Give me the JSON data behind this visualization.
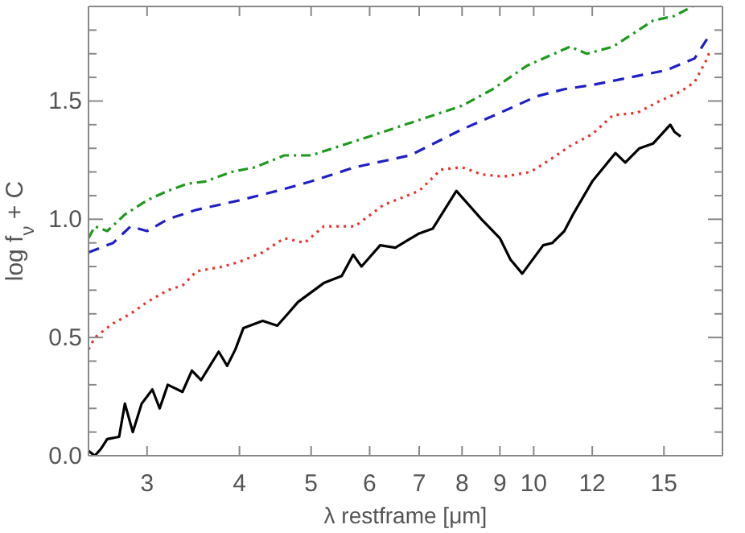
{
  "chart_data": {
    "type": "line",
    "xlabel": "λ restframe [μm]",
    "ylabel": "log f$_{ν}$ + C",
    "log": "x",
    "marker": "none",
    "xlim": [
      2.5,
      18
    ],
    "xticks": [
      3,
      4,
      5,
      6,
      7,
      8,
      9,
      10,
      12,
      15
    ],
    "ylim": [
      0,
      1.9
    ],
    "yticks": [
      {
        "value": 0,
        "label": "0.0"
      },
      {
        "value": 0.1,
        "label": null
      },
      {
        "value": 0.2,
        "label": null
      },
      {
        "value": 0.3,
        "label": null
      },
      {
        "value": 0.4,
        "label": null
      },
      {
        "value": 0.5,
        "label": "0.5"
      },
      {
        "value": 0.6,
        "label": null
      },
      {
        "value": 0.7,
        "label": null
      },
      {
        "value": 0.8,
        "label": null
      },
      {
        "value": 0.9,
        "label": null
      },
      {
        "value": 1,
        "label": "1.0"
      },
      {
        "value": 1.1,
        "label": null
      },
      {
        "value": 1.2,
        "label": null
      },
      {
        "value": 1.3,
        "label": null
      },
      {
        "value": 1.4,
        "label": null
      },
      {
        "value": 1.5,
        "label": "1.5"
      },
      {
        "value": 1.6,
        "label": null
      },
      {
        "value": 1.7,
        "label": null
      },
      {
        "value": 1.8,
        "label": null
      }
    ],
    "series": [
      {
        "color": "#000000",
        "line_style": "solid",
        "x": [
          2.5,
          2.55,
          2.6,
          2.65,
          2.75,
          2.8,
          2.87,
          2.95,
          3.05,
          3.12,
          3.2,
          3.35,
          3.45,
          3.55,
          3.75,
          3.85,
          3.95,
          4.05,
          4.3,
          4.5,
          4.65,
          4.8,
          5.2,
          5.5,
          5.7,
          5.85,
          6.2,
          6.5,
          7.0,
          7.3,
          7.86,
          8.5,
          9.0,
          9.3,
          9.65,
          10.3,
          10.6,
          11.0,
          11.3,
          12.0,
          12.9,
          13.3,
          13.9,
          14.5,
          15.3,
          15.5,
          15.8
        ],
        "values": [
          0.02,
          0.0,
          0.03,
          0.07,
          0.08,
          0.22,
          0.1,
          0.22,
          0.28,
          0.2,
          0.3,
          0.27,
          0.36,
          0.32,
          0.44,
          0.38,
          0.45,
          0.54,
          0.57,
          0.55,
          0.6,
          0.65,
          0.73,
          0.76,
          0.85,
          0.8,
          0.89,
          0.88,
          0.94,
          0.96,
          1.12,
          1.0,
          0.92,
          0.83,
          0.77,
          0.89,
          0.9,
          0.95,
          1.02,
          1.16,
          1.28,
          1.24,
          1.3,
          1.32,
          1.4,
          1.37,
          1.35
        ]
      },
      {
        "color": "#e8322a",
        "line_style": "dotted",
        "x": [
          2.5,
          2.55,
          2.7,
          2.85,
          3.0,
          3.2,
          3.35,
          3.5,
          3.8,
          4.0,
          4.3,
          4.6,
          4.9,
          5.2,
          5.73,
          6.26,
          7.0,
          7.49,
          8.0,
          8.5,
          9.1,
          9.9,
          10.5,
          11.2,
          12.0,
          12.8,
          13.8,
          14.8,
          15.8,
          16.5,
          17.1,
          17.3
        ],
        "values": [
          0.45,
          0.5,
          0.56,
          0.6,
          0.65,
          0.7,
          0.72,
          0.78,
          0.8,
          0.82,
          0.86,
          0.92,
          0.9,
          0.97,
          0.97,
          1.06,
          1.12,
          1.21,
          1.22,
          1.19,
          1.18,
          1.2,
          1.25,
          1.31,
          1.36,
          1.44,
          1.45,
          1.5,
          1.54,
          1.58,
          1.67,
          1.71
        ]
      },
      {
        "color": "#1f1fc8",
        "line_style": "dashed",
        "x": [
          2.5,
          2.7,
          2.85,
          3.0,
          3.2,
          3.5,
          4.0,
          4.5,
          5.0,
          5.73,
          6.8,
          8.0,
          9.0,
          10.1,
          11.0,
          12.1,
          13.5,
          15.1,
          16.5,
          17.3
        ],
        "values": [
          0.86,
          0.9,
          0.97,
          0.95,
          1.0,
          1.04,
          1.08,
          1.12,
          1.16,
          1.22,
          1.27,
          1.38,
          1.45,
          1.52,
          1.55,
          1.57,
          1.6,
          1.63,
          1.68,
          1.78
        ]
      },
      {
        "color": "#1e9a1e",
        "line_style": "dashdot",
        "x": [
          2.5,
          2.55,
          2.65,
          2.8,
          3.0,
          3.2,
          3.4,
          3.6,
          3.9,
          4.2,
          4.6,
          5.0,
          5.73,
          6.7,
          8.0,
          8.8,
          9.8,
          11.2,
          11.8,
          12.8,
          14.5,
          15.5,
          16.4
        ],
        "values": [
          0.92,
          0.97,
          0.95,
          1.02,
          1.08,
          1.12,
          1.15,
          1.16,
          1.2,
          1.22,
          1.27,
          1.27,
          1.33,
          1.4,
          1.48,
          1.55,
          1.65,
          1.73,
          1.7,
          1.73,
          1.84,
          1.86,
          1.9
        ]
      }
    ]
  }
}
